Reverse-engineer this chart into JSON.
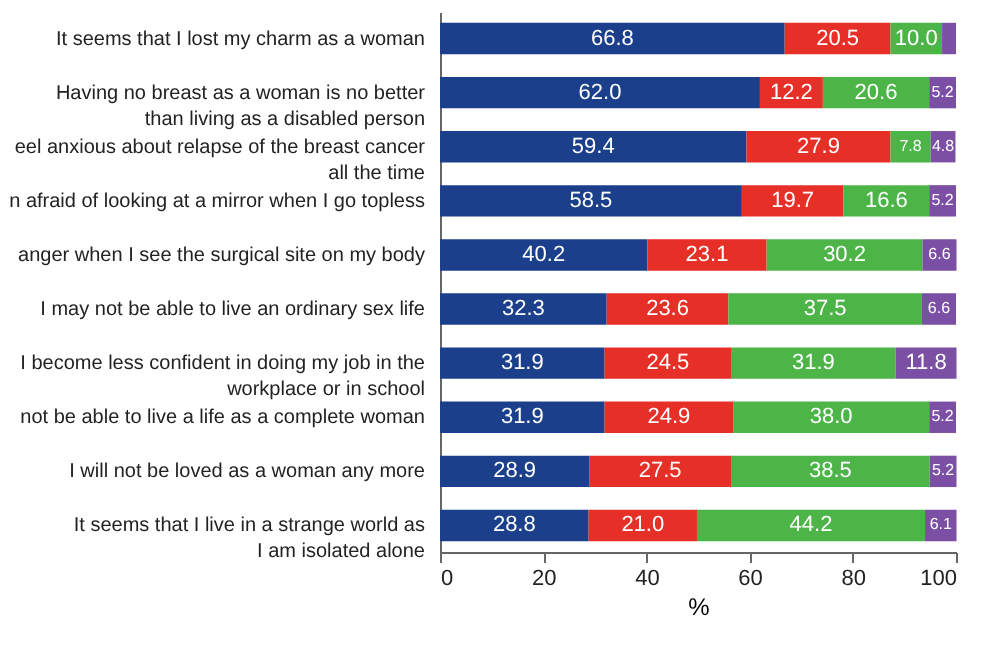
{
  "chart_data": {
    "type": "bar",
    "orientation": "horizontal",
    "stacked": true,
    "xlabel": "%",
    "xlim": [
      0,
      100
    ],
    "xticks": [
      0,
      20,
      40,
      60,
      80,
      100
    ],
    "grid": false,
    "categories": [
      "It seems that I lost my charm as a woman",
      "Having no breast as a woman is no better\nthan living as a disabled person",
      "eel anxious about relapse of the breast cancer\nall the time",
      "n afraid of looking at a mirror when I go topless",
      "anger when I see the surgical site on my body",
      "I may not be able to live an ordinary sex life",
      "I become less confident in doing my job in the\nworkplace or in school",
      "not be able to live a life as a complete woman",
      "I will not be loved as a woman any more",
      "It seems that I live in a strange world as\nI am isolated alone"
    ],
    "series": [
      {
        "color": "#1b3f8b",
        "values": [
          66.8,
          62.0,
          59.4,
          58.5,
          40.2,
          32.3,
          31.9,
          31.9,
          28.9,
          28.8
        ],
        "value_labels": [
          "66.8",
          "62.0",
          "59.4",
          "58.5",
          "40.2",
          "32.3",
          "31.9",
          "31.9",
          "28.9",
          "28.8"
        ]
      },
      {
        "color": "#e63027",
        "values": [
          20.5,
          12.2,
          27.9,
          19.7,
          23.1,
          23.6,
          24.5,
          24.9,
          27.5,
          21.0
        ],
        "value_labels": [
          "20.5",
          "12.2",
          "27.9",
          "19.7",
          "23.1",
          "23.6",
          "24.5",
          "24.9",
          "27.5",
          "21.0"
        ]
      },
      {
        "color": "#4db548",
        "values": [
          10.0,
          20.6,
          7.8,
          16.6,
          30.2,
          37.5,
          31.9,
          38.0,
          38.5,
          44.2
        ],
        "value_labels": [
          "10.0",
          "20.6",
          "7.8",
          "16.6",
          "30.2",
          "37.5",
          "31.9",
          "38.0",
          "38.5",
          "44.2"
        ]
      },
      {
        "color": "#7b4fa3",
        "values": [
          2.7,
          5.2,
          4.8,
          5.2,
          6.6,
          6.6,
          11.8,
          5.2,
          5.2,
          6.1
        ],
        "value_labels": [
          null,
          "5.2",
          "4.8",
          "5.2",
          "6.6",
          "6.6",
          "11.8",
          "5.2",
          "5.2",
          "6.1"
        ]
      }
    ]
  }
}
